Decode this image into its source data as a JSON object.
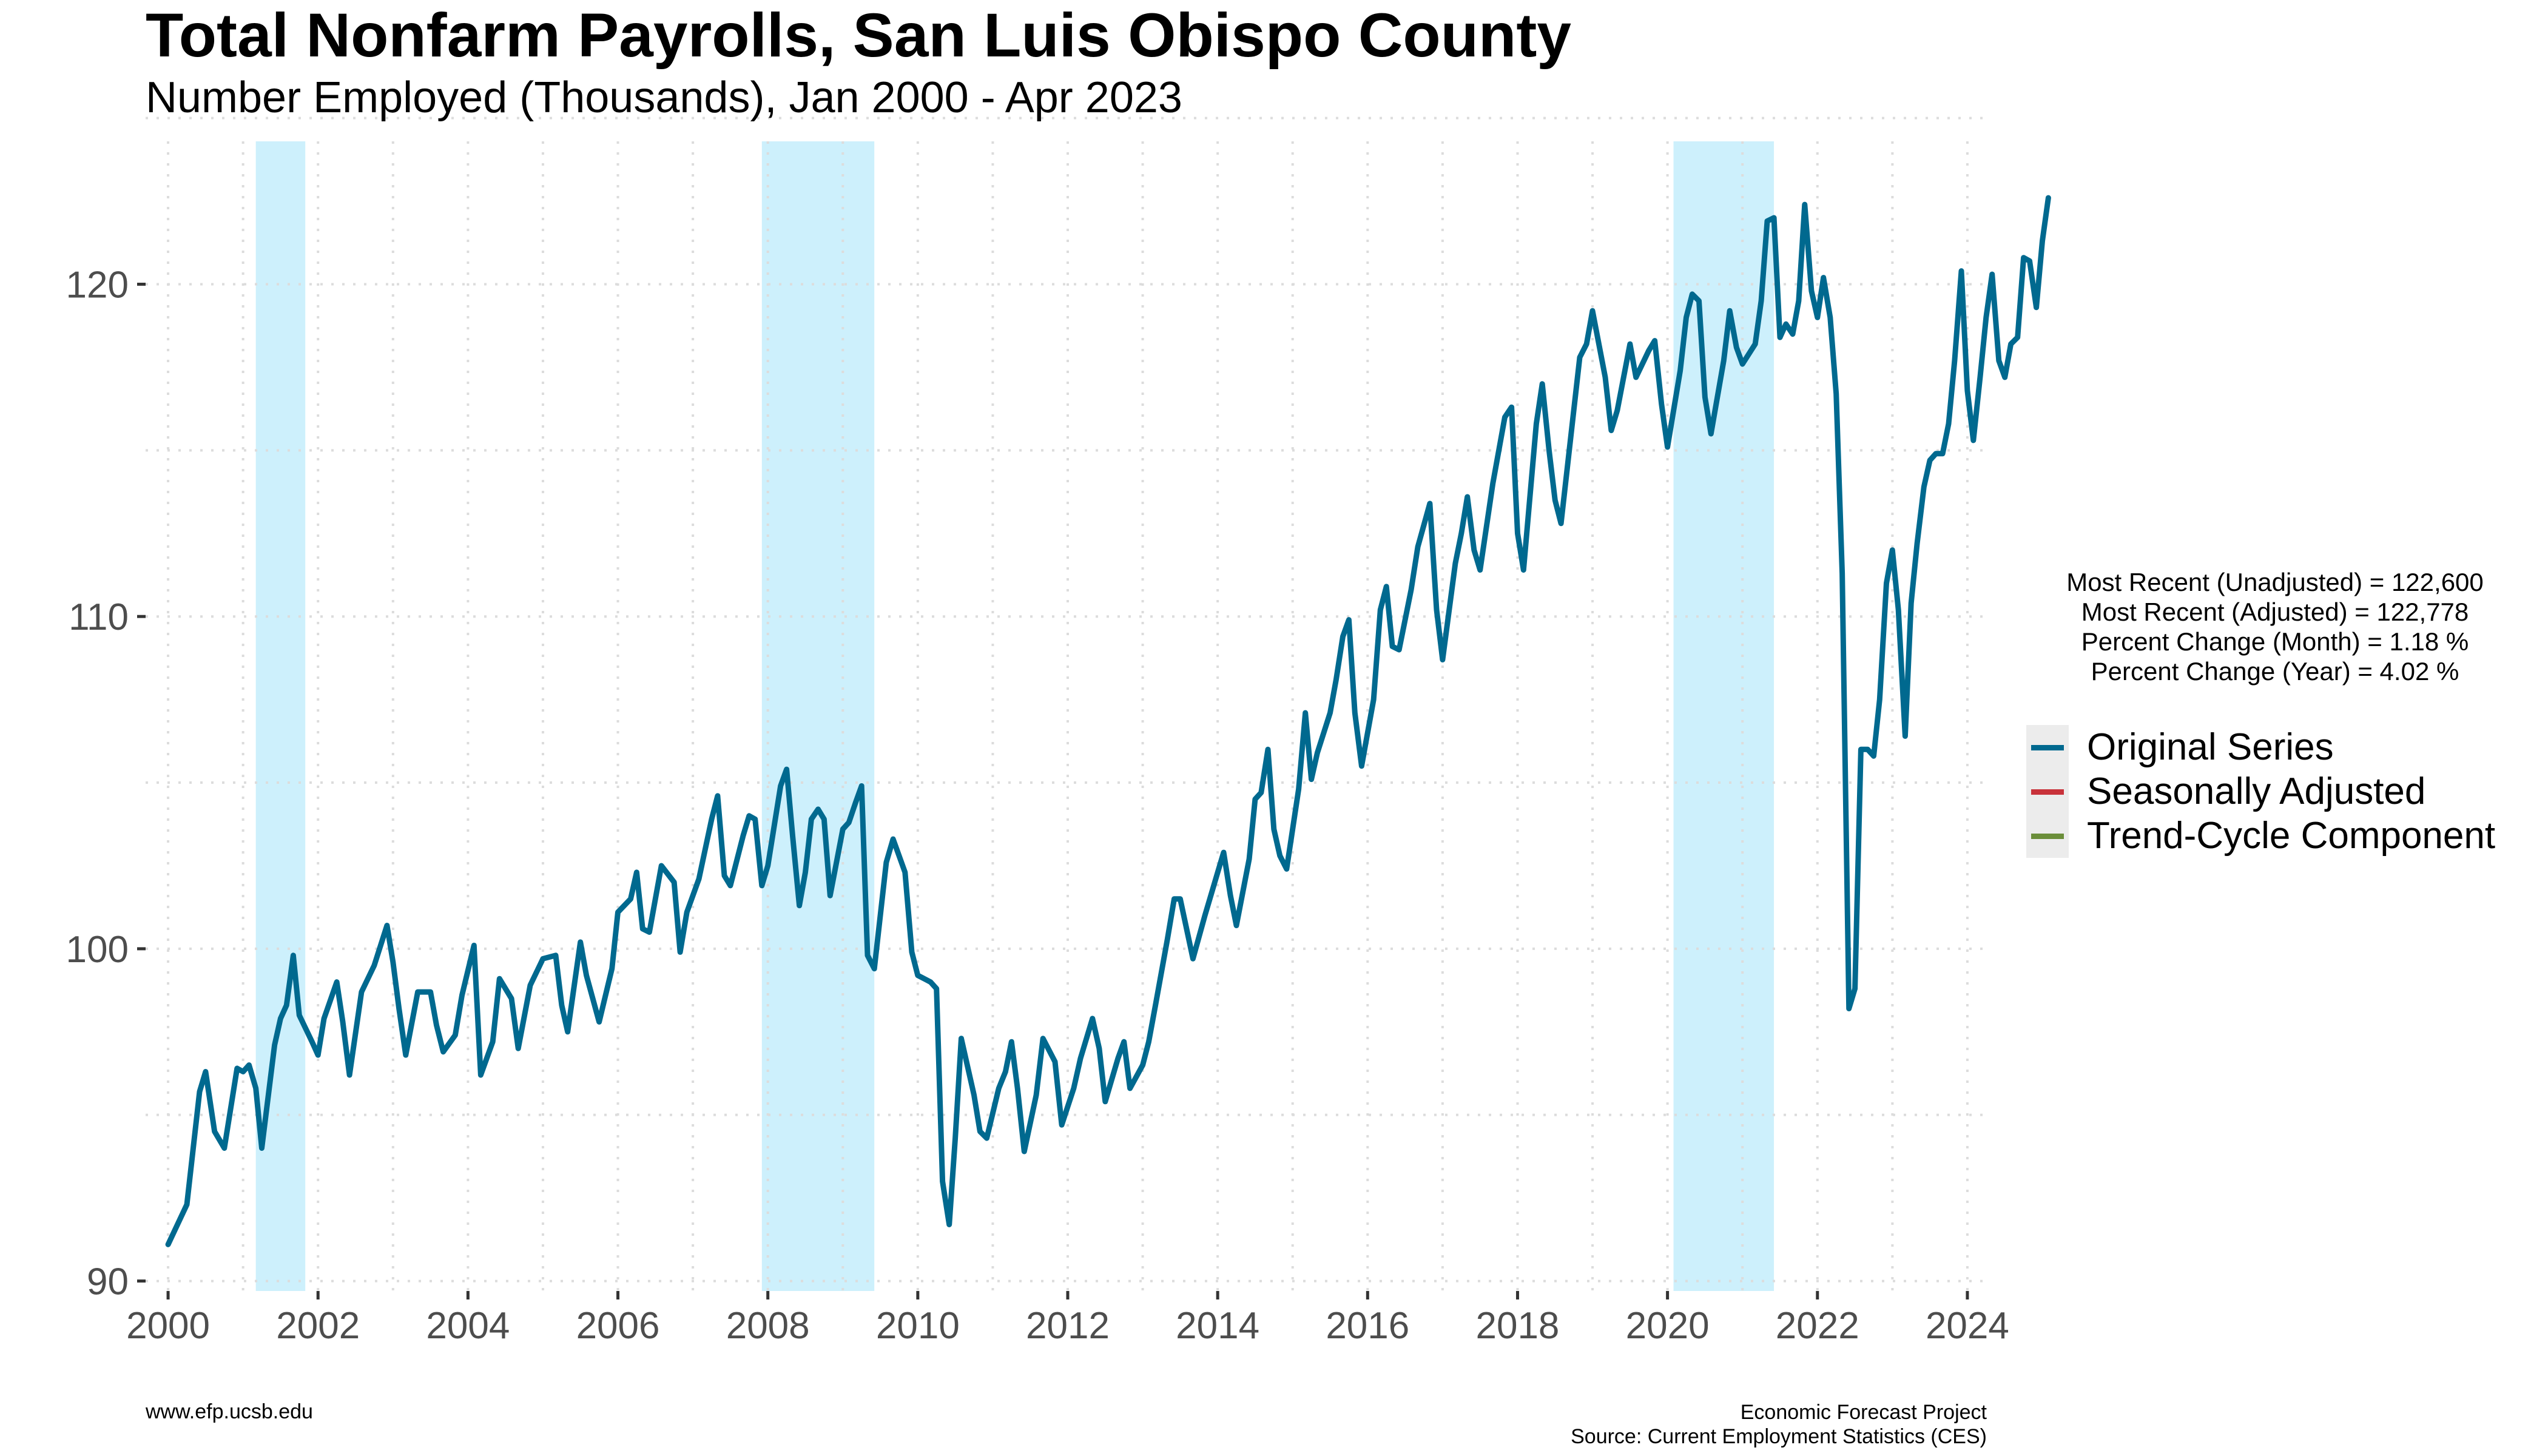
{
  "header": {
    "title": "Total Nonfarm Payrolls, San Luis Obispo County",
    "subtitle": "Number Employed (Thousands), Jan 2000 - Apr 2023"
  },
  "stats": [
    "Most Recent (Unadjusted) = 122,600",
    "Most Recent (Adjusted) = 122,778",
    "Percent Change (Month) = 1.18 %",
    "Percent Change (Year) = 4.02 %"
  ],
  "footer": {
    "left": "www.efp.ucsb.edu",
    "right_line1": "Economic Forecast Project",
    "right_line2": "Source: Current Employment Statistics (CES)"
  },
  "chart_data": {
    "type": "line",
    "title": "Total Nonfarm Payrolls, San Luis Obispo County",
    "subtitle": "Number Employed (Thousands), Jan 2000 - Apr 2023",
    "xlabel": "",
    "ylabel": "",
    "xlim": [
      1999.7,
      2024.3
    ],
    "ylim": [
      89.7,
      124.3
    ],
    "x_ticks": [
      2000,
      2002,
      2004,
      2006,
      2008,
      2010,
      2012,
      2014,
      2016,
      2018,
      2020,
      2022,
      2024
    ],
    "y_ticks": [
      90,
      100,
      110,
      120
    ],
    "grid": true,
    "legend_position": "right",
    "recessions": [
      [
        2001.17,
        2001.83
      ],
      [
        2007.92,
        2009.42
      ],
      [
        2020.08,
        2021.42
      ]
    ],
    "series": [
      {
        "name": "Original Series",
        "color": "#00698f",
        "points": [
          [
            2000.0,
            91.1
          ],
          [
            2000.25,
            92.3
          ],
          [
            2000.42,
            95.7
          ],
          [
            2000.5,
            96.3
          ],
          [
            2000.62,
            94.5
          ],
          [
            2000.75,
            94.0
          ],
          [
            2000.92,
            96.4
          ],
          [
            2001.0,
            96.3
          ],
          [
            2001.08,
            96.5
          ],
          [
            2001.17,
            95.8
          ],
          [
            2001.25,
            94.0
          ],
          [
            2001.42,
            97.1
          ],
          [
            2001.5,
            97.9
          ],
          [
            2001.58,
            98.3
          ],
          [
            2001.67,
            99.8
          ],
          [
            2001.75,
            98.0
          ],
          [
            2001.92,
            97.2
          ],
          [
            2002.0,
            96.8
          ],
          [
            2002.08,
            97.9
          ],
          [
            2002.25,
            99.0
          ],
          [
            2002.33,
            97.8
          ],
          [
            2002.42,
            96.2
          ],
          [
            2002.58,
            98.7
          ],
          [
            2002.75,
            99.5
          ],
          [
            2002.92,
            100.7
          ],
          [
            2003.0,
            99.6
          ],
          [
            2003.08,
            98.2
          ],
          [
            2003.17,
            96.8
          ],
          [
            2003.33,
            98.7
          ],
          [
            2003.5,
            98.7
          ],
          [
            2003.58,
            97.7
          ],
          [
            2003.67,
            96.9
          ],
          [
            2003.83,
            97.4
          ],
          [
            2003.92,
            98.6
          ],
          [
            2004.08,
            100.1
          ],
          [
            2004.17,
            96.2
          ],
          [
            2004.33,
            97.2
          ],
          [
            2004.42,
            99.1
          ],
          [
            2004.58,
            98.5
          ],
          [
            2004.67,
            97.0
          ],
          [
            2004.83,
            98.9
          ],
          [
            2005.0,
            99.7
          ],
          [
            2005.17,
            99.8
          ],
          [
            2005.25,
            98.3
          ],
          [
            2005.33,
            97.5
          ],
          [
            2005.5,
            100.2
          ],
          [
            2005.58,
            99.2
          ],
          [
            2005.75,
            97.8
          ],
          [
            2005.92,
            99.4
          ],
          [
            2006.0,
            101.1
          ],
          [
            2006.17,
            101.5
          ],
          [
            2006.25,
            102.3
          ],
          [
            2006.33,
            100.6
          ],
          [
            2006.42,
            100.5
          ],
          [
            2006.58,
            102.5
          ],
          [
            2006.75,
            102.0
          ],
          [
            2006.83,
            99.9
          ],
          [
            2006.92,
            101.1
          ],
          [
            2007.08,
            102.1
          ],
          [
            2007.25,
            103.9
          ],
          [
            2007.33,
            104.6
          ],
          [
            2007.42,
            102.2
          ],
          [
            2007.5,
            101.9
          ],
          [
            2007.67,
            103.4
          ],
          [
            2007.75,
            104.0
          ],
          [
            2007.83,
            103.9
          ],
          [
            2007.92,
            101.9
          ],
          [
            2008.0,
            102.5
          ],
          [
            2008.17,
            104.9
          ],
          [
            2008.25,
            105.4
          ],
          [
            2008.33,
            103.4
          ],
          [
            2008.42,
            101.3
          ],
          [
            2008.5,
            102.3
          ],
          [
            2008.58,
            103.9
          ],
          [
            2008.67,
            104.2
          ],
          [
            2008.75,
            103.9
          ],
          [
            2008.83,
            101.6
          ],
          [
            2009.0,
            103.6
          ],
          [
            2009.08,
            103.8
          ],
          [
            2009.17,
            104.4
          ],
          [
            2009.25,
            104.9
          ],
          [
            2009.33,
            99.8
          ],
          [
            2009.42,
            99.4
          ],
          [
            2009.58,
            102.6
          ],
          [
            2009.67,
            103.3
          ],
          [
            2009.83,
            102.3
          ],
          [
            2009.92,
            99.9
          ],
          [
            2010.0,
            99.2
          ],
          [
            2010.17,
            99.0
          ],
          [
            2010.25,
            98.8
          ],
          [
            2010.33,
            93.0
          ],
          [
            2010.42,
            91.7
          ],
          [
            2010.5,
            94.3
          ],
          [
            2010.58,
            97.3
          ],
          [
            2010.75,
            95.6
          ],
          [
            2010.83,
            94.5
          ],
          [
            2010.92,
            94.3
          ],
          [
            2011.08,
            95.8
          ],
          [
            2011.17,
            96.3
          ],
          [
            2011.25,
            97.2
          ],
          [
            2011.33,
            95.8
          ],
          [
            2011.42,
            93.9
          ],
          [
            2011.58,
            95.6
          ],
          [
            2011.67,
            97.3
          ],
          [
            2011.83,
            96.6
          ],
          [
            2011.92,
            94.7
          ],
          [
            2012.08,
            95.8
          ],
          [
            2012.17,
            96.7
          ],
          [
            2012.33,
            97.9
          ],
          [
            2012.42,
            97.0
          ],
          [
            2012.5,
            95.4
          ],
          [
            2012.67,
            96.7
          ],
          [
            2012.75,
            97.2
          ],
          [
            2012.83,
            95.8
          ],
          [
            2013.0,
            96.5
          ],
          [
            2013.08,
            97.2
          ],
          [
            2013.17,
            98.3
          ],
          [
            2013.33,
            100.3
          ],
          [
            2013.42,
            101.5
          ],
          [
            2013.5,
            101.5
          ],
          [
            2013.67,
            99.7
          ],
          [
            2013.83,
            101.0
          ],
          [
            2014.0,
            102.3
          ],
          [
            2014.08,
            102.9
          ],
          [
            2014.17,
            101.6
          ],
          [
            2014.25,
            100.7
          ],
          [
            2014.42,
            102.7
          ],
          [
            2014.5,
            104.5
          ],
          [
            2014.58,
            104.7
          ],
          [
            2014.67,
            106.0
          ],
          [
            2014.75,
            103.6
          ],
          [
            2014.83,
            102.8
          ],
          [
            2014.92,
            102.4
          ],
          [
            2015.08,
            104.8
          ],
          [
            2015.17,
            107.1
          ],
          [
            2015.25,
            105.1
          ],
          [
            2015.33,
            105.9
          ],
          [
            2015.5,
            107.1
          ],
          [
            2015.58,
            108.1
          ],
          [
            2015.67,
            109.4
          ],
          [
            2015.75,
            109.9
          ],
          [
            2015.83,
            107.1
          ],
          [
            2015.92,
            105.5
          ],
          [
            2016.08,
            107.5
          ],
          [
            2016.17,
            110.2
          ],
          [
            2016.25,
            110.9
          ],
          [
            2016.33,
            109.1
          ],
          [
            2016.42,
            109.0
          ],
          [
            2016.58,
            110.8
          ],
          [
            2016.67,
            112.1
          ],
          [
            2016.83,
            113.4
          ],
          [
            2016.92,
            110.2
          ],
          [
            2017.0,
            108.7
          ],
          [
            2017.17,
            111.6
          ],
          [
            2017.25,
            112.5
          ],
          [
            2017.33,
            113.6
          ],
          [
            2017.42,
            112.0
          ],
          [
            2017.5,
            111.4
          ],
          [
            2017.67,
            114.0
          ],
          [
            2017.75,
            115.0
          ],
          [
            2017.83,
            116.0
          ],
          [
            2017.92,
            116.3
          ],
          [
            2018.0,
            112.5
          ],
          [
            2018.08,
            111.4
          ],
          [
            2018.25,
            115.8
          ],
          [
            2018.33,
            117.0
          ],
          [
            2018.42,
            115.0
          ],
          [
            2018.5,
            113.5
          ],
          [
            2018.58,
            112.8
          ],
          [
            2018.75,
            116.2
          ],
          [
            2018.83,
            117.8
          ],
          [
            2018.92,
            118.2
          ],
          [
            2019.0,
            119.2
          ],
          [
            2019.17,
            117.2
          ],
          [
            2019.25,
            115.6
          ],
          [
            2019.33,
            116.2
          ],
          [
            2019.5,
            118.2
          ],
          [
            2019.58,
            117.2
          ],
          [
            2019.75,
            118.0
          ],
          [
            2019.83,
            118.3
          ],
          [
            2019.92,
            116.4
          ],
          [
            2020.0,
            115.1
          ],
          [
            2020.17,
            117.4
          ],
          [
            2020.25,
            119.0
          ],
          [
            2020.33,
            119.7
          ],
          [
            2020.42,
            119.5
          ],
          [
            2020.5,
            116.6
          ],
          [
            2020.58,
            115.5
          ],
          [
            2020.75,
            117.7
          ],
          [
            2020.83,
            119.2
          ],
          [
            2020.92,
            118.1
          ],
          [
            2021.0,
            117.6
          ],
          [
            2021.17,
            118.2
          ],
          [
            2021.25,
            119.5
          ],
          [
            2021.33,
            121.9
          ],
          [
            2021.42,
            122.0
          ],
          [
            2021.5,
            118.4
          ],
          [
            2021.58,
            118.8
          ],
          [
            2021.67,
            118.5
          ],
          [
            2021.75,
            119.5
          ],
          [
            2021.83,
            122.4
          ],
          [
            2021.92,
            119.8
          ],
          [
            2022.0,
            119.0
          ],
          [
            2022.08,
            120.2
          ],
          [
            2022.17,
            119.0
          ],
          [
            2022.25,
            116.7
          ],
          [
            2022.33,
            111.3
          ],
          [
            2022.42,
            98.2
          ],
          [
            2022.5,
            98.8
          ],
          [
            2022.58,
            106.0
          ],
          [
            2022.67,
            106.0
          ],
          [
            2022.75,
            105.8
          ],
          [
            2022.83,
            107.5
          ],
          [
            2022.92,
            111.0
          ],
          [
            2023.0,
            112.0
          ],
          [
            2023.08,
            110.2
          ],
          [
            2023.17,
            106.4
          ],
          [
            2023.25,
            110.4
          ],
          [
            2023.33,
            112.2
          ],
          [
            2023.42,
            113.9
          ],
          [
            2023.5,
            114.7
          ],
          [
            2023.58,
            114.9
          ],
          [
            2023.67,
            114.9
          ],
          [
            2023.75,
            115.8
          ],
          [
            2023.83,
            117.7
          ],
          [
            2023.92,
            120.4
          ],
          [
            2024.0,
            116.8
          ],
          [
            2024.08,
            115.3
          ],
          [
            2024.17,
            117.2
          ],
          [
            2024.25,
            119.0
          ],
          [
            2024.33,
            120.3
          ],
          [
            2024.42,
            117.7
          ],
          [
            2024.5,
            117.2
          ],
          [
            2024.58,
            118.2
          ],
          [
            2024.67,
            118.4
          ],
          [
            2024.75,
            120.8
          ],
          [
            2024.83,
            120.7
          ],
          [
            2024.92,
            119.3
          ],
          [
            2025.0,
            121.3
          ],
          [
            2025.08,
            122.6
          ]
        ]
      },
      {
        "name": "Seasonally Adjusted",
        "color": "#c8323a",
        "points": []
      },
      {
        "name": "Trend-Cycle Component",
        "color": "#6b8e3a",
        "points": []
      }
    ]
  }
}
